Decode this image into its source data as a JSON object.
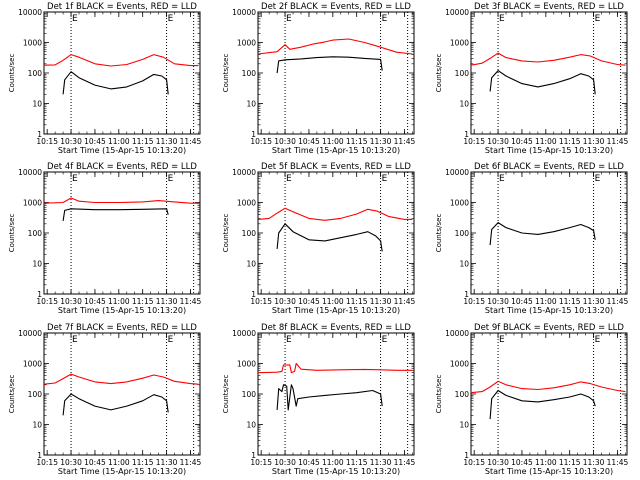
{
  "chart_data": [
    {
      "type": "line",
      "title": "Det 1f BLACK = Events, RED = LLD",
      "xlabel": "Start Time (15-Apr-15 10:13:20)",
      "ylabel": "Counts/sec",
      "yscale": "log",
      "ylim": [
        1,
        10000
      ],
      "xlim": [
        "10:13",
        "11:51"
      ],
      "x_ticks": [
        "10:15",
        "10:30",
        "10:45",
        "11:00",
        "11:15",
        "11:30",
        "11:45"
      ],
      "y_ticks": [
        "1",
        "10",
        "100",
        "1000",
        "10000"
      ],
      "markers": [
        {
          "time": "10:30",
          "label": "E",
          "style": "dotted"
        },
        {
          "time": "11:30",
          "label": "E",
          "style": "dotted"
        },
        {
          "time": "11:47",
          "label": "",
          "style": "dotted"
        }
      ],
      "series": [
        {
          "color": "#ff0000",
          "x": [
            "10:13",
            "10:20",
            "10:25",
            "10:30",
            "10:35",
            "10:45",
            "10:55",
            "11:05",
            "11:15",
            "11:22",
            "11:28",
            "11:35",
            "11:45",
            "11:50"
          ],
          "y": [
            180,
            185,
            260,
            400,
            330,
            200,
            170,
            190,
            280,
            400,
            330,
            200,
            175,
            175
          ]
        },
        {
          "color": "#000000",
          "x": [
            "10:25",
            "10:26",
            "10:30",
            "10:35",
            "10:45",
            "10:55",
            "11:05",
            "11:15",
            "11:22",
            "11:27",
            "11:30",
            "11:31"
          ],
          "y": [
            20,
            60,
            110,
            70,
            40,
            30,
            35,
            55,
            90,
            80,
            60,
            20
          ]
        }
      ]
    },
    {
      "type": "line",
      "title": "Det 2f BLACK = Events, RED = LLD",
      "xlabel": "Start Time (15-Apr-15 10:13:20)",
      "ylabel": "Counts/sec",
      "yscale": "log",
      "ylim": [
        1,
        10000
      ],
      "xlim": [
        "10:13",
        "11:51"
      ],
      "x_ticks": [
        "10:15",
        "10:30",
        "10:45",
        "11:00",
        "11:15",
        "11:30",
        "11:45"
      ],
      "y_ticks": [
        "1",
        "10",
        "100",
        "1000",
        "10000"
      ],
      "markers": [
        {
          "time": "10:30",
          "label": "E",
          "style": "dotted"
        },
        {
          "time": "11:30",
          "label": "E",
          "style": "dotted"
        },
        {
          "time": "11:47",
          "label": "",
          "style": "dotted"
        }
      ],
      "series": [
        {
          "color": "#ff0000",
          "x": [
            "10:13",
            "10:25",
            "10:30",
            "10:33",
            "10:40",
            "10:48",
            "10:55",
            "11:00",
            "11:10",
            "11:20",
            "11:30",
            "11:40",
            "11:50"
          ],
          "y": [
            420,
            500,
            850,
            600,
            700,
            900,
            1050,
            1200,
            1300,
            1000,
            700,
            480,
            420
          ]
        },
        {
          "color": "#000000",
          "x": [
            "10:25",
            "10:26",
            "10:30",
            "10:40",
            "10:50",
            "11:00",
            "11:10",
            "11:20",
            "11:30",
            "11:31"
          ],
          "y": [
            100,
            250,
            270,
            290,
            320,
            340,
            330,
            300,
            280,
            120
          ]
        }
      ]
    },
    {
      "type": "line",
      "title": "Det 3f BLACK = Events, RED = LLD",
      "xlabel": "Start Time (15-Apr-15 10:13:20)",
      "ylabel": "Counts/sec",
      "yscale": "log",
      "ylim": [
        1,
        10000
      ],
      "xlim": [
        "10:13",
        "11:51"
      ],
      "x_ticks": [
        "10:15",
        "10:30",
        "10:45",
        "11:00",
        "11:15",
        "11:30",
        "11:45"
      ],
      "y_ticks": [
        "1",
        "10",
        "100",
        "1000",
        "10000"
      ],
      "markers": [
        {
          "time": "10:30",
          "label": "E",
          "style": "dotted"
        },
        {
          "time": "11:30",
          "label": "E",
          "style": "dotted"
        },
        {
          "time": "11:47",
          "label": "",
          "style": "dotted"
        }
      ],
      "series": [
        {
          "color": "#ff0000",
          "x": [
            "10:13",
            "10:20",
            "10:25",
            "10:30",
            "10:35",
            "10:45",
            "10:55",
            "11:05",
            "11:15",
            "11:22",
            "11:28",
            "11:35",
            "11:45",
            "11:50"
          ],
          "y": [
            180,
            210,
            300,
            450,
            320,
            250,
            230,
            260,
            330,
            400,
            360,
            250,
            190,
            180
          ]
        },
        {
          "color": "#000000",
          "x": [
            "10:25",
            "10:26",
            "10:30",
            "10:35",
            "10:45",
            "10:55",
            "11:05",
            "11:15",
            "11:22",
            "11:27",
            "11:30",
            "11:31"
          ],
          "y": [
            25,
            70,
            120,
            80,
            45,
            35,
            45,
            65,
            95,
            80,
            60,
            20
          ]
        }
      ]
    },
    {
      "type": "line",
      "title": "Det 4f BLACK = Events, RED = LLD",
      "xlabel": "Start Time (15-Apr-15 10:13:20)",
      "ylabel": "Counts/sec",
      "yscale": "log",
      "ylim": [
        1,
        10000
      ],
      "xlim": [
        "10:13",
        "11:51"
      ],
      "x_ticks": [
        "10:15",
        "10:30",
        "10:45",
        "11:00",
        "11:15",
        "11:30",
        "11:45"
      ],
      "y_ticks": [
        "1",
        "10",
        "100",
        "1000",
        "10000"
      ],
      "markers": [
        {
          "time": "10:30",
          "label": "E",
          "style": "dotted"
        },
        {
          "time": "11:30",
          "label": "E",
          "style": "dotted"
        },
        {
          "time": "11:47",
          "label": "",
          "style": "dotted"
        }
      ],
      "series": [
        {
          "color": "#ff0000",
          "x": [
            "10:13",
            "10:25",
            "10:30",
            "10:35",
            "10:45",
            "11:00",
            "11:15",
            "11:25",
            "11:35",
            "11:45",
            "11:50"
          ],
          "y": [
            950,
            1000,
            1400,
            1100,
            1000,
            1000,
            1050,
            1150,
            1050,
            950,
            950
          ]
        },
        {
          "color": "#000000",
          "x": [
            "10:25",
            "10:26",
            "10:30",
            "10:45",
            "11:00",
            "11:15",
            "11:30",
            "11:31"
          ],
          "y": [
            250,
            550,
            620,
            580,
            580,
            600,
            620,
            400
          ]
        }
      ]
    },
    {
      "type": "line",
      "title": "Det 5f BLACK = Events, RED = LLD",
      "xlabel": "Start Time (15-Apr-15 10:13:20)",
      "ylabel": "Counts/sec",
      "yscale": "log",
      "ylim": [
        1,
        10000
      ],
      "xlim": [
        "10:13",
        "11:51"
      ],
      "x_ticks": [
        "10:15",
        "10:30",
        "10:45",
        "11:00",
        "11:15",
        "11:30",
        "11:45"
      ],
      "y_ticks": [
        "1",
        "10",
        "100",
        "1000",
        "10000"
      ],
      "markers": [
        {
          "time": "10:30",
          "label": "E",
          "style": "dotted"
        },
        {
          "time": "11:30",
          "label": "E",
          "style": "dotted"
        },
        {
          "time": "11:47",
          "label": "",
          "style": "dotted"
        }
      ],
      "series": [
        {
          "color": "#ff0000",
          "x": [
            "10:13",
            "10:20",
            "10:25",
            "10:30",
            "10:35",
            "10:45",
            "10:55",
            "11:05",
            "11:15",
            "11:22",
            "11:28",
            "11:35",
            "11:45",
            "11:50"
          ],
          "y": [
            280,
            300,
            450,
            650,
            500,
            300,
            260,
            300,
            420,
            600,
            520,
            350,
            280,
            280
          ]
        },
        {
          "color": "#000000",
          "x": [
            "10:25",
            "10:26",
            "10:30",
            "10:35",
            "10:45",
            "10:55",
            "11:05",
            "11:15",
            "11:22",
            "11:27",
            "11:30",
            "11:31"
          ],
          "y": [
            30,
            100,
            200,
            110,
            60,
            55,
            70,
            90,
            110,
            80,
            55,
            25
          ]
        }
      ]
    },
    {
      "type": "line",
      "title": "Det 6f BLACK = Events, RED = LLD",
      "xlabel": "Start Time (15-Apr-15 10:13:20)",
      "ylabel": "Counts/sec",
      "yscale": "log",
      "ylim": [
        1,
        10000
      ],
      "xlim": [
        "10:13",
        "11:51"
      ],
      "x_ticks": [
        "10:15",
        "10:30",
        "10:45",
        "11:00",
        "11:15",
        "11:30",
        "11:45"
      ],
      "y_ticks": [
        "1",
        "10",
        "100",
        "1000",
        "10000"
      ],
      "markers": [
        {
          "time": "10:30",
          "label": "E",
          "style": "dotted"
        },
        {
          "time": "11:30",
          "label": "E",
          "style": "dotted"
        },
        {
          "time": "11:47",
          "label": "",
          "style": "dotted"
        }
      ],
      "series": [
        {
          "color": "#000000",
          "x": [
            "10:25",
            "10:26",
            "10:30",
            "10:35",
            "10:45",
            "10:55",
            "11:05",
            "11:15",
            "11:22",
            "11:27",
            "11:30",
            "11:31"
          ],
          "y": [
            40,
            130,
            220,
            150,
            100,
            90,
            110,
            150,
            190,
            150,
            120,
            60
          ]
        }
      ]
    },
    {
      "type": "line",
      "title": "Det 7f BLACK = Events, RED = LLD",
      "xlabel": "Start Time (15-Apr-15 10:13:20)",
      "ylabel": "Counts/sec",
      "yscale": "log",
      "ylim": [
        1,
        10000
      ],
      "xlim": [
        "10:13",
        "11:51"
      ],
      "x_ticks": [
        "10:15",
        "10:30",
        "10:45",
        "11:00",
        "11:15",
        "11:30",
        "11:45"
      ],
      "y_ticks": [
        "1",
        "10",
        "100",
        "1000",
        "10000"
      ],
      "markers": [
        {
          "time": "10:30",
          "label": "E",
          "style": "dotted"
        },
        {
          "time": "11:30",
          "label": "E",
          "style": "dotted"
        },
        {
          "time": "11:47",
          "label": "",
          "style": "dotted"
        }
      ],
      "series": [
        {
          "color": "#ff0000",
          "x": [
            "10:13",
            "10:20",
            "10:25",
            "10:30",
            "10:35",
            "10:45",
            "10:55",
            "11:05",
            "11:15",
            "11:22",
            "11:28",
            "11:35",
            "11:45",
            "11:50"
          ],
          "y": [
            210,
            230,
            320,
            450,
            360,
            250,
            220,
            250,
            330,
            420,
            360,
            260,
            220,
            210
          ]
        },
        {
          "color": "#000000",
          "x": [
            "10:25",
            "10:26",
            "10:30",
            "10:35",
            "10:45",
            "10:55",
            "11:05",
            "11:15",
            "11:22",
            "11:27",
            "11:30",
            "11:31"
          ],
          "y": [
            20,
            60,
            100,
            70,
            40,
            30,
            40,
            60,
            95,
            80,
            60,
            25
          ]
        }
      ]
    },
    {
      "type": "line",
      "title": "Det 8f BLACK = Events, RED = LLD",
      "xlabel": "Start Time (15-Apr-15 10:13:20)",
      "ylabel": "Counts/sec",
      "yscale": "log",
      "ylim": [
        1,
        10000
      ],
      "xlim": [
        "10:13",
        "11:51"
      ],
      "x_ticks": [
        "10:15",
        "10:30",
        "10:45",
        "11:00",
        "11:15",
        "11:30",
        "11:45"
      ],
      "y_ticks": [
        "1",
        "10",
        "100",
        "1000",
        "10000"
      ],
      "markers": [
        {
          "time": "10:30",
          "label": "E",
          "style": "dotted"
        },
        {
          "time": "11:30",
          "label": "E",
          "style": "dotted"
        },
        {
          "time": "11:47",
          "label": "",
          "style": "dotted"
        }
      ],
      "series": [
        {
          "color": "#ff0000",
          "x": [
            "10:13",
            "10:25",
            "10:28",
            "10:29",
            "10:33",
            "10:34",
            "10:36",
            "10:37",
            "10:40",
            "10:50",
            "11:05",
            "11:20",
            "11:30",
            "11:40",
            "11:50"
          ],
          "y": [
            500,
            520,
            550,
            900,
            900,
            500,
            560,
            1000,
            650,
            600,
            620,
            640,
            620,
            600,
            600
          ]
        },
        {
          "color": "#000000",
          "x": [
            "10:25",
            "10:26",
            "10:28",
            "10:29",
            "10:31",
            "10:32",
            "10:34",
            "10:35",
            "10:37",
            "10:38",
            "10:45",
            "10:55",
            "11:05",
            "11:15",
            "11:25",
            "11:30",
            "11:31"
          ],
          "y": [
            30,
            150,
            120,
            200,
            180,
            30,
            200,
            150,
            40,
            70,
            80,
            90,
            100,
            110,
            130,
            100,
            40
          ]
        }
      ]
    },
    {
      "type": "line",
      "title": "Det 9f BLACK = Events, RED = LLD",
      "xlabel": "Start Time (15-Apr-15 10:13:20)",
      "ylabel": "Counts/sec",
      "yscale": "log",
      "ylim": [
        1,
        10000
      ],
      "xlim": [
        "10:13",
        "11:51"
      ],
      "x_ticks": [
        "10:15",
        "10:30",
        "10:45",
        "11:00",
        "11:15",
        "11:30",
        "11:45"
      ],
      "y_ticks": [
        "1",
        "10",
        "100",
        "1000",
        "10000"
      ],
      "markers": [
        {
          "time": "10:30",
          "label": "E",
          "style": "dotted"
        },
        {
          "time": "11:30",
          "label": "E",
          "style": "dotted"
        },
        {
          "time": "11:47",
          "label": "",
          "style": "dotted"
        }
      ],
      "series": [
        {
          "color": "#ff0000",
          "x": [
            "10:13",
            "10:20",
            "10:25",
            "10:30",
            "10:35",
            "10:45",
            "10:55",
            "11:05",
            "11:15",
            "11:22",
            "11:28",
            "11:35",
            "11:45",
            "11:50"
          ],
          "y": [
            110,
            120,
            170,
            260,
            200,
            150,
            140,
            160,
            200,
            250,
            220,
            170,
            130,
            120
          ]
        },
        {
          "color": "#000000",
          "x": [
            "10:25",
            "10:26",
            "10:30",
            "10:35",
            "10:45",
            "10:55",
            "11:05",
            "11:15",
            "11:22",
            "11:27",
            "11:30",
            "11:31"
          ],
          "y": [
            15,
            70,
            130,
            90,
            60,
            55,
            65,
            80,
            100,
            80,
            60,
            40
          ]
        }
      ]
    }
  ]
}
